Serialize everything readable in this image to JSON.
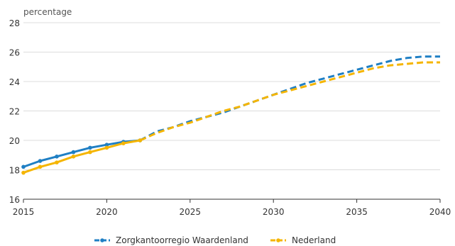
{
  "chart_data": {
    "type": "line",
    "ylabel": "percentage",
    "xlim": [
      2015,
      2040
    ],
    "ylim": [
      16,
      28
    ],
    "xticks": [
      2015,
      2020,
      2025,
      2030,
      2035,
      2040
    ],
    "yticks": [
      16,
      18,
      20,
      22,
      24,
      26,
      28
    ],
    "xtick_labels": [
      "2015",
      "2020",
      "2025",
      "2030",
      "2035",
      "2040"
    ],
    "ytick_labels": [
      "16",
      "18",
      "20",
      "22",
      "24",
      "26",
      "28"
    ],
    "grid": "horizontal",
    "legend_position": "bottom",
    "historical_until": 2022,
    "series": [
      {
        "name": "Zorgkantoorregio Waardenland",
        "color": "#1f7fc4",
        "x": [
          2015,
          2016,
          2017,
          2018,
          2019,
          2020,
          2021,
          2022,
          2023,
          2024,
          2025,
          2026,
          2027,
          2028,
          2029,
          2030,
          2031,
          2032,
          2033,
          2034,
          2035,
          2036,
          2037,
          2038,
          2039,
          2040
        ],
        "y": [
          18.2,
          18.6,
          18.9,
          19.2,
          19.5,
          19.7,
          19.9,
          20.0,
          20.6,
          20.9,
          21.3,
          21.6,
          21.9,
          22.3,
          22.7,
          23.1,
          23.5,
          23.9,
          24.2,
          24.5,
          24.8,
          25.1,
          25.4,
          25.6,
          25.7,
          25.7
        ]
      },
      {
        "name": "Nederland",
        "color": "#f5b500",
        "x": [
          2015,
          2016,
          2017,
          2018,
          2019,
          2020,
          2021,
          2022,
          2023,
          2024,
          2025,
          2026,
          2027,
          2028,
          2029,
          2030,
          2031,
          2032,
          2033,
          2034,
          2035,
          2036,
          2037,
          2038,
          2039,
          2040
        ],
        "y": [
          17.8,
          18.2,
          18.5,
          18.9,
          19.2,
          19.5,
          19.8,
          20.0,
          20.5,
          20.9,
          21.2,
          21.6,
          22.0,
          22.3,
          22.7,
          23.1,
          23.4,
          23.7,
          24.0,
          24.3,
          24.6,
          24.9,
          25.1,
          25.2,
          25.3,
          25.3
        ]
      }
    ]
  }
}
